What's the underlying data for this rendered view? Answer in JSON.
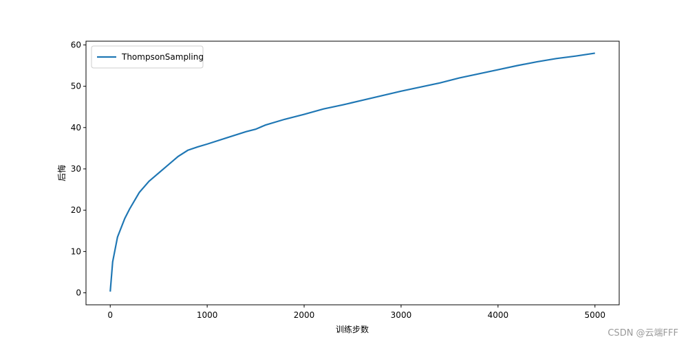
{
  "chart_data": {
    "type": "line",
    "x_label": "训练步数",
    "y_label": "后悔",
    "watermark": "CSDN @云端FFF",
    "x": [
      0,
      25,
      50,
      75,
      100,
      150,
      200,
      250,
      300,
      400,
      500,
      600,
      700,
      800,
      900,
      1000,
      1200,
      1400,
      1500,
      1600,
      1800,
      2000,
      2200,
      2400,
      2600,
      2800,
      3000,
      3200,
      3400,
      3600,
      3800,
      4000,
      4200,
      4400,
      4600,
      4800,
      5000
    ],
    "series": [
      {
        "name": "ThompsonSampling",
        "color": "#1f77b4",
        "values": [
          0.3,
          7.5,
          10.5,
          13.5,
          15,
          18,
          20.3,
          22.3,
          24.3,
          27,
          29,
          31,
          33,
          34.5,
          35.3,
          36,
          37.5,
          39,
          39.6,
          40.6,
          42,
          43.2,
          44.5,
          45.5,
          46.6,
          47.7,
          48.8,
          49.8,
          50.8,
          52,
          53,
          54,
          55,
          55.9,
          56.7,
          57.3,
          58
        ]
      }
    ],
    "xlim": [
      -250,
      5250
    ],
    "xticks": [
      0,
      1000,
      2000,
      3000,
      4000,
      5000
    ],
    "ylim": [
      -2.9,
      60.9
    ],
    "yticks": [
      0,
      10,
      20,
      30,
      40,
      50,
      60
    ],
    "grid": false,
    "legend": "upper left"
  }
}
